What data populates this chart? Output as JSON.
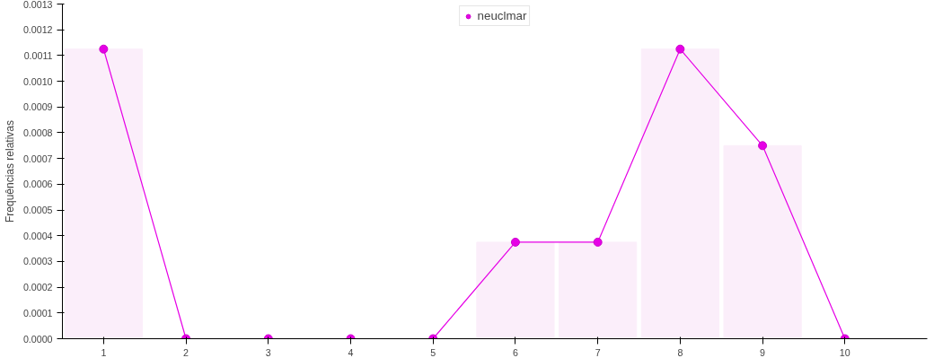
{
  "chart_data": {
    "type": "bar",
    "ylabel": "Frequências relativas",
    "categories": [
      "1",
      "2",
      "3",
      "4",
      "5",
      "6",
      "7",
      "8",
      "9",
      "10"
    ],
    "series": [
      {
        "color": "#fbeefa",
        "values": [
          0.001125,
          0,
          0,
          0,
          0,
          0.000375,
          0.000375,
          0.001125,
          0.00075,
          0
        ]
      },
      {
        "type": "line",
        "name": "neuclmar",
        "color": "#e600e6",
        "values": [
          0.001125,
          0,
          0,
          0,
          0,
          0.000375,
          0.000375,
          0.001125,
          0.00075,
          0
        ]
      }
    ],
    "ylim": [
      0,
      0.0013
    ],
    "yticks": [
      {
        "value": 0,
        "label": "0.0000"
      },
      {
        "value": 0.0001,
        "label": "0.0001"
      },
      {
        "value": 0.0002,
        "label": "0.0002"
      },
      {
        "value": 0.0003,
        "label": "0.0003"
      },
      {
        "value": 0.0004,
        "label": "0.0004"
      },
      {
        "value": 0.0005,
        "label": "0.0005"
      },
      {
        "value": 0.0006,
        "label": "0.0006"
      },
      {
        "value": 0.0007,
        "label": "0.0007"
      },
      {
        "value": 0.0008,
        "label": "0.0008"
      },
      {
        "value": 0.0009,
        "label": "0.0009"
      },
      {
        "value": 0.001,
        "label": "0.0010"
      },
      {
        "value": 0.0011,
        "label": "0.0011"
      },
      {
        "value": 0.0012,
        "label": "0.0012"
      },
      {
        "value": 0.0013,
        "label": "0.0013"
      }
    ],
    "marker": "circle",
    "legend": "top",
    "grid": false
  }
}
